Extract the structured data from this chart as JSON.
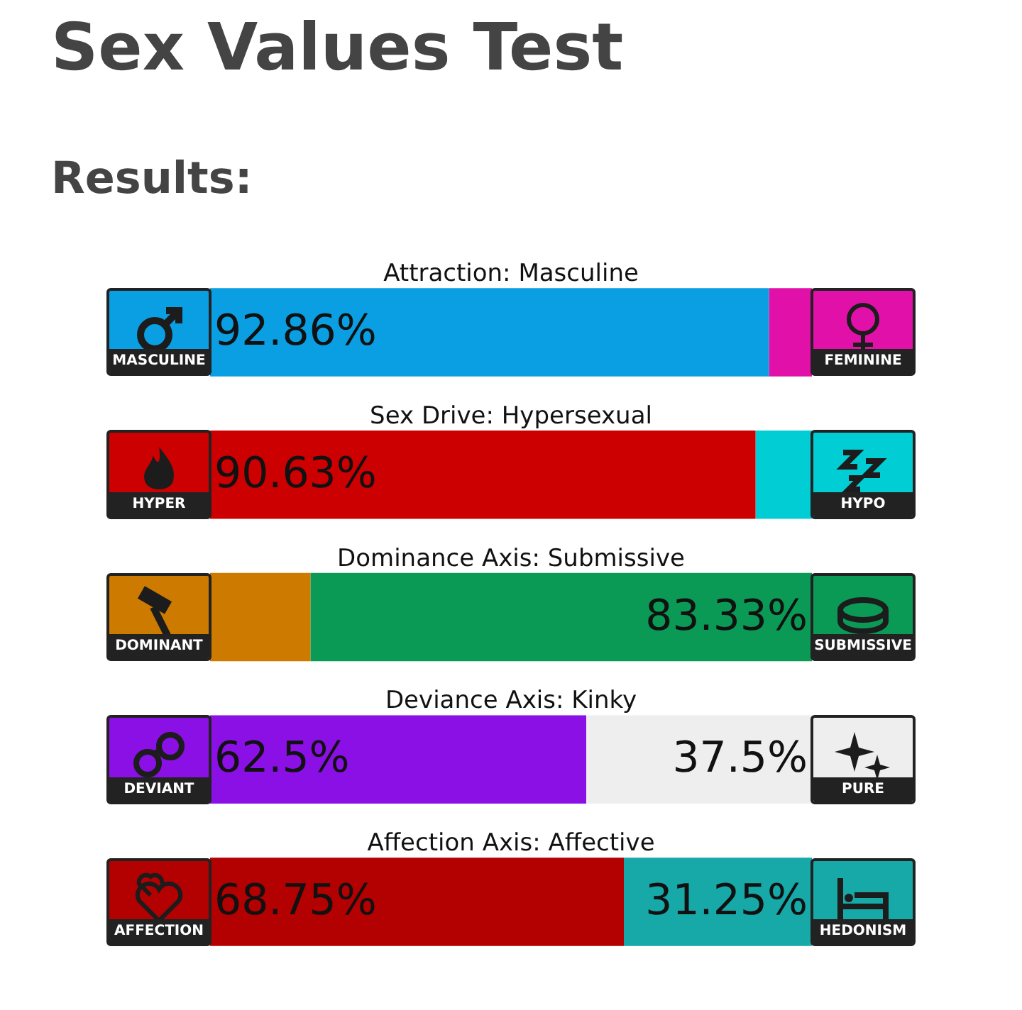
{
  "chart_data": {
    "type": "bar",
    "title": "Sex Values Test",
    "subtitle": "Results:",
    "orientation": "horizontal",
    "stacked": true,
    "xlim": [
      0,
      100
    ],
    "tick_labels": false,
    "categories": [
      "Attraction: Masculine",
      "Sex Drive: Hypersexual",
      "Dominance Axis: Submissive",
      "Deviance Axis: Kinky",
      "Affection Axis: Affective"
    ],
    "series": [
      {
        "colors": [
          "#0a9ee3",
          "#cc0000",
          "#cc7a00",
          "#8a10e6",
          "#b30000"
        ],
        "values": [
          92.86,
          90.63,
          16.67,
          62.5,
          68.75
        ],
        "value_labels": [
          "92.86%",
          "90.63%",
          null,
          "62.5%",
          "68.75%"
        ]
      },
      {
        "colors": [
          "#e010a8",
          "#00cdd4",
          "#0a9a55",
          "#eeeeee",
          "#17a8a8"
        ],
        "values": [
          7.14,
          9.37,
          83.33,
          37.5,
          31.25
        ],
        "value_labels": [
          null,
          null,
          "83.33%",
          "37.5%",
          "31.25%"
        ]
      }
    ],
    "annotations": [
      "MASCULINE",
      "FEMININE",
      "HYPER",
      "HYPO",
      "DOMINANT",
      "SUBMISSIVE",
      "DEVIANT",
      "PURE",
      "AFFECTION",
      "HEDONISM"
    ]
  }
}
